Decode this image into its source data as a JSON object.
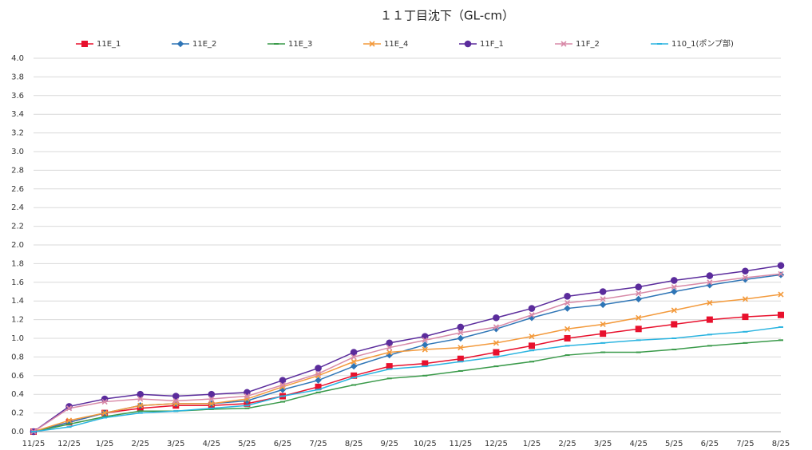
{
  "chart_data": {
    "type": "line",
    "title": "１１丁目沈下（GL-cm）",
    "categories": [
      "11/25",
      "12/25",
      "1/25",
      "2/25",
      "3/25",
      "4/25",
      "5/25",
      "6/25",
      "7/25",
      "8/25",
      "9/25",
      "10/25",
      "11/25",
      "12/25",
      "1/25",
      "2/25",
      "3/25",
      "4/25",
      "5/25",
      "6/25",
      "7/25",
      "8/25"
    ],
    "ylim": [
      0,
      4.0
    ],
    "yticks": [
      {
        "value": 0,
        "label": "0.0"
      },
      {
        "value": 0.2,
        "label": "0.2"
      },
      {
        "value": 0.4,
        "label": "0.4"
      },
      {
        "value": 0.6,
        "label": "0.6"
      },
      {
        "value": 0.8,
        "label": "0.8"
      },
      {
        "value": 1,
        "label": "1.0"
      },
      {
        "value": 1.2,
        "label": "1.2"
      },
      {
        "value": 1.4,
        "label": "1.4"
      },
      {
        "value": 1.6,
        "label": "1.6"
      },
      {
        "value": 1.8,
        "label": "1.8"
      },
      {
        "value": 2,
        "label": "2.0"
      },
      {
        "value": 2.2,
        "label": "2.2"
      },
      {
        "value": 2.4,
        "label": "2.4"
      },
      {
        "value": 2.6,
        "label": "2.6"
      },
      {
        "value": 2.8,
        "label": "2.8"
      },
      {
        "value": 3,
        "label": "3.0"
      },
      {
        "value": 3.2,
        "label": "3.2"
      },
      {
        "value": 3.4,
        "label": "3.4"
      },
      {
        "value": 3.6,
        "label": "3.6"
      },
      {
        "value": 3.8,
        "label": "3.8"
      },
      {
        "value": 4,
        "label": "4.0"
      }
    ],
    "grid": true,
    "legend": "top",
    "series": [
      {
        "name": "11E_1",
        "color": "#e8112d",
        "marker": "square",
        "values": [
          0,
          0.1,
          0.2,
          0.25,
          0.28,
          0.28,
          0.3,
          0.38,
          0.48,
          0.6,
          0.7,
          0.73,
          0.78,
          0.85,
          0.92,
          1.0,
          1.05,
          1.1,
          1.15,
          1.2,
          1.23,
          1.25
        ]
      },
      {
        "name": "11E_2",
        "color": "#2e75b6",
        "marker": "diamond",
        "values": [
          0,
          0.1,
          0.2,
          0.28,
          0.3,
          0.3,
          0.33,
          0.45,
          0.55,
          0.7,
          0.82,
          0.93,
          1.0,
          1.1,
          1.22,
          1.32,
          1.36,
          1.42,
          1.5,
          1.57,
          1.63,
          1.68
        ]
      },
      {
        "name": "11E_3",
        "color": "#3a9a4a",
        "marker": "dash",
        "values": [
          0,
          0.08,
          0.16,
          0.22,
          0.22,
          0.24,
          0.25,
          0.32,
          0.42,
          0.5,
          0.57,
          0.6,
          0.65,
          0.7,
          0.75,
          0.82,
          0.85,
          0.85,
          0.88,
          0.92,
          0.95,
          0.98
        ]
      },
      {
        "name": "11E_4",
        "color": "#f39a3c",
        "marker": "cross",
        "values": [
          0,
          0.12,
          0.2,
          0.28,
          0.3,
          0.3,
          0.35,
          0.48,
          0.6,
          0.75,
          0.85,
          0.88,
          0.9,
          0.95,
          1.02,
          1.1,
          1.15,
          1.22,
          1.3,
          1.38,
          1.42,
          1.47
        ]
      },
      {
        "name": "11F_1",
        "color": "#5b2c9c",
        "marker": "circle",
        "values": [
          0,
          0.27,
          0.35,
          0.4,
          0.38,
          0.4,
          0.42,
          0.55,
          0.68,
          0.85,
          0.95,
          1.02,
          1.12,
          1.22,
          1.32,
          1.45,
          1.5,
          1.55,
          1.62,
          1.67,
          1.72,
          1.78
        ]
      },
      {
        "name": "11F_2",
        "color": "#d88aa8",
        "marker": "cross",
        "values": [
          0,
          0.25,
          0.32,
          0.35,
          0.33,
          0.35,
          0.38,
          0.5,
          0.62,
          0.8,
          0.9,
          0.98,
          1.06,
          1.12,
          1.25,
          1.38,
          1.42,
          1.48,
          1.55,
          1.6,
          1.65,
          1.69
        ]
      },
      {
        "name": "110_1(ポンプ部)",
        "color": "#2bb4e0",
        "marker": "dash",
        "values": [
          0,
          0.05,
          0.15,
          0.2,
          0.22,
          0.25,
          0.28,
          0.38,
          0.45,
          0.58,
          0.67,
          0.7,
          0.75,
          0.8,
          0.87,
          0.92,
          0.95,
          0.98,
          1.0,
          1.04,
          1.07,
          1.12
        ]
      }
    ]
  }
}
